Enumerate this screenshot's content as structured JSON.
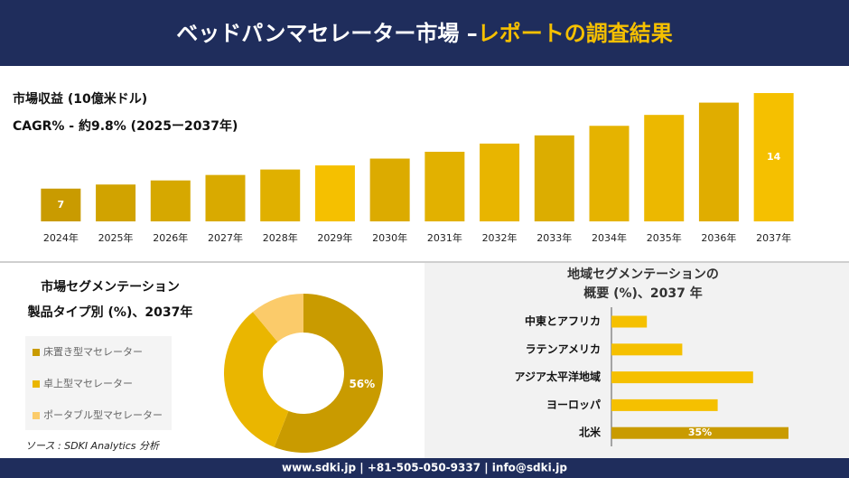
{
  "header": {
    "title": "ベッドパンマセレーター市場 –",
    "highlight": "レポートの調査結果"
  },
  "chart_data": [
    {
      "type": "bar",
      "title": "市場収益 (10億米ドル)",
      "subtitle": "CAGR% - 約9.8% (2025ー2037年)",
      "categories": [
        "2024年",
        "2025年",
        "2026年",
        "2027年",
        "2028年",
        "2029年",
        "2030年",
        "2031年",
        "2032年",
        "2033年",
        "2034年",
        "2035年",
        "2036年",
        "2037年"
      ],
      "values": [
        7,
        7.3,
        7.6,
        8,
        8.4,
        8.7,
        9.2,
        9.7,
        10.3,
        10.9,
        11.6,
        12.4,
        13.3,
        14
      ],
      "value_labels": [
        "7",
        null,
        null,
        null,
        null,
        null,
        null,
        null,
        null,
        null,
        null,
        null,
        null,
        "14"
      ],
      "colors": [
        "#c99b00",
        "#d1a300",
        "#d6a800",
        "#d9aa00",
        "#e0b000",
        "#f5c000",
        "#dcab00",
        "#e2b100",
        "#e8b500",
        "#dcad00",
        "#e5b300",
        "#ecb800",
        "#e0ad00",
        "#f5c000"
      ],
      "ylim": [
        4.6,
        14
      ]
    },
    {
      "type": "donut",
      "title": "市場セグメンテーション",
      "subtitle": "製品タイプ別 (%)、2037年",
      "categories": [
        "床置き型マセレーター",
        "卓上型マセレーター",
        "ポータブル型マセレーター"
      ],
      "values": [
        56,
        33,
        11
      ],
      "value_labels": [
        "56%",
        null,
        null
      ],
      "colors": [
        "#c99b00",
        "#eab600",
        "#fbcb6a"
      ]
    },
    {
      "type": "hbar",
      "title": "地域セグメンテーションの",
      "subtitle": "概要 (%)、2037 年",
      "categories": [
        "中東とアフリカ",
        "ラテンアメリカ",
        "アジア太平洋地域",
        "ヨーロッパ",
        "北米"
      ],
      "values": [
        7,
        14,
        28,
        21,
        35
      ],
      "value_labels": [
        null,
        null,
        null,
        null,
        "35%"
      ],
      "colors": [
        "#f5c000",
        "#f5c000",
        "#f5c000",
        "#f5c000",
        "#c99b00"
      ],
      "xlim": [
        0,
        40
      ]
    }
  ],
  "source": "ソース : SDKI Analytics 分析",
  "footer": "www.sdki.jp | +81-505-050-9337 | info@sdki.jp"
}
